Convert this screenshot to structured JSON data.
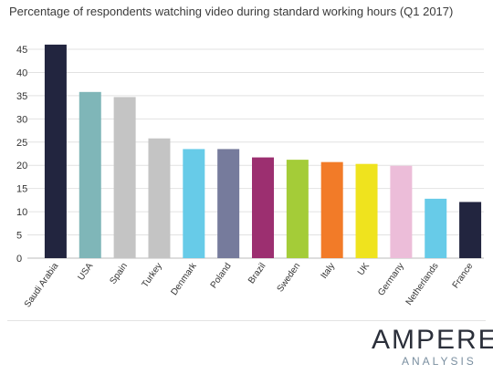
{
  "chart_data": {
    "type": "bar",
    "title": "Percentage of respondents watching video during standard working hours (Q1 2017)",
    "xlabel": "",
    "ylabel": "",
    "ylim": [
      0,
      45
    ],
    "yticks": [
      0,
      5,
      10,
      15,
      20,
      25,
      30,
      35,
      40,
      45
    ],
    "grid": true,
    "categories": [
      "Saudi Arabia",
      "USA",
      "Spain",
      "Turkey",
      "Denmark",
      "Poland",
      "Brazil",
      "Sweden",
      "Italy",
      "UK",
      "Germany",
      "Netherlands",
      "France"
    ],
    "values": [
      46,
      35.8,
      34.7,
      25.8,
      23.5,
      23.5,
      21.7,
      21.2,
      20.7,
      20.3,
      19.9,
      12.8,
      12.1
    ],
    "colors": [
      "#22253f",
      "#7fb6b8",
      "#c4c4c4",
      "#c4c4c4",
      "#67cbe8",
      "#767b9c",
      "#9c2f70",
      "#a4cc38",
      "#f27b28",
      "#efe31e",
      "#ecbdd9",
      "#67cbe8",
      "#22253f"
    ]
  },
  "logo": {
    "main": "AMPERE",
    "sub": "ANALYSIS"
  }
}
